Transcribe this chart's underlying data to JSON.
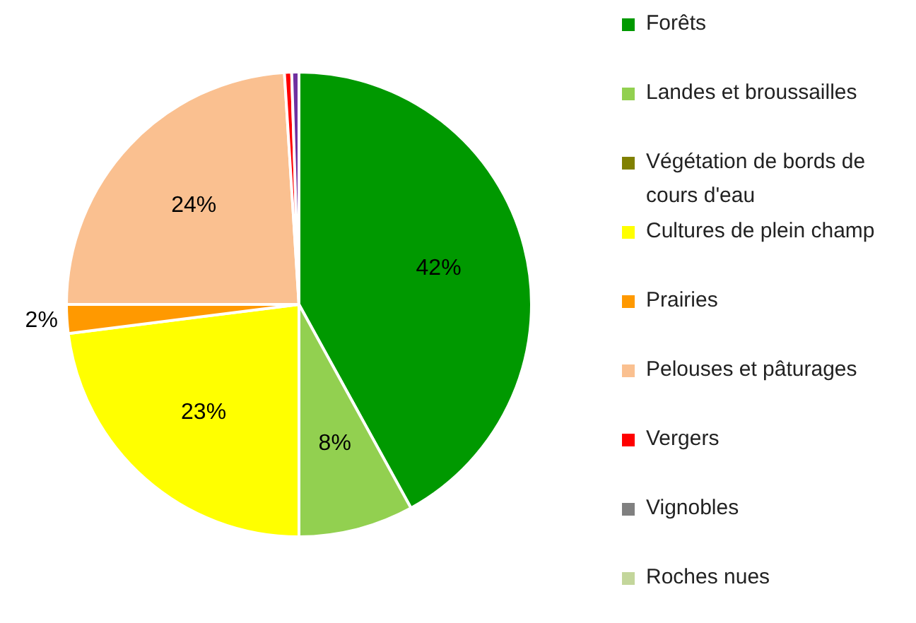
{
  "chart_data": {
    "type": "pie",
    "categories": [
      "Forêts",
      "Landes et broussailles",
      "Végétation de bords de cours d'eau",
      "Cultures de plein champ",
      "Prairies",
      "Pelouses et pâturages",
      "Vergers",
      "Vignobles",
      "Roches nues",
      null
    ],
    "values": [
      42,
      8,
      0,
      23,
      2,
      24,
      0.5,
      0,
      0,
      0.5
    ],
    "colors": [
      "#009900",
      "#92d050",
      "#808000",
      "#ffff00",
      "#ff9900",
      "#fac090",
      "#ff0000",
      "#808080",
      "#c3d69b",
      "#7030a0"
    ],
    "value_labels": [
      "42%",
      "8%",
      null,
      "23%",
      "2%",
      "24%",
      null,
      null,
      null,
      null
    ],
    "legend": "right"
  }
}
